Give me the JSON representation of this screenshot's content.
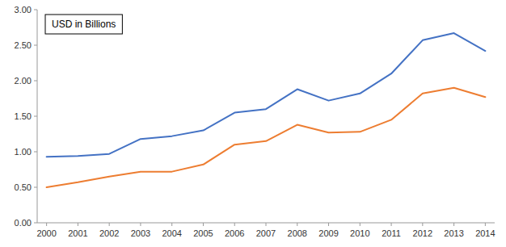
{
  "chart_data": {
    "type": "line",
    "annotation": "USD in Billions",
    "x": [
      2000,
      2001,
      2002,
      2003,
      2004,
      2005,
      2006,
      2007,
      2008,
      2009,
      2010,
      2011,
      2012,
      2013,
      2014
    ],
    "series": [
      {
        "color": "#4472C4",
        "values": [
          0.93,
          0.94,
          0.97,
          1.18,
          1.22,
          1.3,
          1.55,
          1.6,
          1.88,
          1.72,
          1.82,
          2.1,
          2.57,
          2.67,
          2.42
        ]
      },
      {
        "color": "#ED7D31",
        "values": [
          0.5,
          0.57,
          0.65,
          0.72,
          0.72,
          0.82,
          1.1,
          1.15,
          1.38,
          1.27,
          1.28,
          1.45,
          1.82,
          1.9,
          1.77
        ]
      }
    ],
    "xlim": [
      1999.7,
      2014.3
    ],
    "xticks": [
      2000,
      2001,
      2002,
      2003,
      2004,
      2005,
      2006,
      2007,
      2008,
      2009,
      2010,
      2011,
      2012,
      2013,
      2014
    ],
    "ylim": [
      0.0,
      3.0
    ],
    "yticks": [
      {
        "value": 0,
        "label": "0.00"
      },
      {
        "value": 0.5,
        "label": "0.50"
      },
      {
        "value": 1,
        "label": "1.00"
      },
      {
        "value": 1.5,
        "label": "1.50"
      },
      {
        "value": 2,
        "label": "2.00"
      },
      {
        "value": 2.5,
        "label": "2.50"
      },
      {
        "value": 3,
        "label": "3.00"
      }
    ],
    "grid": false
  }
}
